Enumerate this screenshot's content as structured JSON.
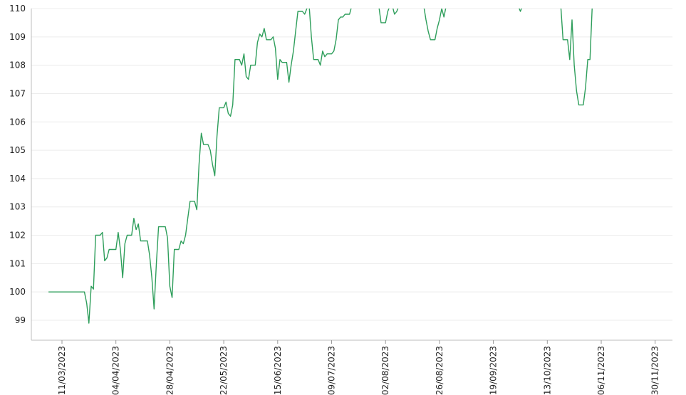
{
  "chart_data": {
    "type": "line",
    "title": "",
    "xlabel": "",
    "ylabel": "",
    "ylim": [
      98.4,
      110
    ],
    "xlim": [
      "2023-03-05",
      "2023-12-04"
    ],
    "grid": {
      "horizontal": true,
      "vertical": false
    },
    "legend": "none",
    "y_ticks": [
      "99",
      "100",
      "101",
      "102",
      "103",
      "104",
      "105",
      "106",
      "107",
      "108",
      "109",
      "110"
    ],
    "x_ticks": [
      {
        "date": "2023-03-11",
        "label": "11/03/2023"
      },
      {
        "date": "2023-04-04",
        "label": "04/04/2023"
      },
      {
        "date": "2023-04-28",
        "label": "28/04/2023"
      },
      {
        "date": "2023-05-22",
        "label": "22/05/2023"
      },
      {
        "date": "2023-06-15",
        "label": "15/06/2023"
      },
      {
        "date": "2023-07-09",
        "label": "09/07/2023"
      },
      {
        "date": "2023-08-02",
        "label": "02/08/2023"
      },
      {
        "date": "2023-08-26",
        "label": "26/08/2023"
      },
      {
        "date": "2023-09-19",
        "label": "19/09/2023"
      },
      {
        "date": "2023-10-13",
        "label": "13/10/2023"
      },
      {
        "date": "2023-11-06",
        "label": "06/11/2023"
      },
      {
        "date": "2023-11-30",
        "label": "30/11/2023"
      }
    ],
    "series": [
      {
        "color": "#2e9e5b",
        "points": [
          [
            "2023-03-05",
            100.0
          ],
          [
            "2023-03-21",
            100.0
          ],
          [
            "2023-03-22",
            99.6
          ],
          [
            "2023-03-23",
            98.9
          ],
          [
            "2023-03-24",
            100.2
          ],
          [
            "2023-03-25",
            100.1
          ],
          [
            "2023-03-26",
            102.0
          ],
          [
            "2023-03-28",
            102.0
          ],
          [
            "2023-03-29",
            102.1
          ],
          [
            "2023-03-30",
            101.1
          ],
          [
            "2023-03-31",
            101.2
          ],
          [
            "2023-04-01",
            101.5
          ],
          [
            "2023-04-04",
            101.5
          ],
          [
            "2023-04-05",
            102.1
          ],
          [
            "2023-04-06",
            101.5
          ],
          [
            "2023-04-07",
            100.5
          ],
          [
            "2023-04-08",
            101.7
          ],
          [
            "2023-04-09",
            102.0
          ],
          [
            "2023-04-11",
            102.0
          ],
          [
            "2023-04-12",
            102.6
          ],
          [
            "2023-04-13",
            102.2
          ],
          [
            "2023-04-14",
            102.4
          ],
          [
            "2023-04-15",
            101.8
          ],
          [
            "2023-04-16",
            101.8
          ],
          [
            "2023-04-18",
            101.8
          ],
          [
            "2023-04-19",
            101.3
          ],
          [
            "2023-04-20",
            100.5
          ],
          [
            "2023-04-21",
            99.4
          ],
          [
            "2023-04-22",
            101.0
          ],
          [
            "2023-04-23",
            102.3
          ],
          [
            "2023-04-26",
            102.3
          ],
          [
            "2023-04-27",
            101.9
          ],
          [
            "2023-04-28",
            100.2
          ],
          [
            "2023-04-29",
            99.8
          ],
          [
            "2023-04-30",
            101.5
          ],
          [
            "2023-05-02",
            101.5
          ],
          [
            "2023-05-03",
            101.8
          ],
          [
            "2023-05-04",
            101.7
          ],
          [
            "2023-05-05",
            102.0
          ],
          [
            "2023-05-06",
            102.6
          ],
          [
            "2023-05-07",
            103.2
          ],
          [
            "2023-05-09",
            103.2
          ],
          [
            "2023-05-10",
            102.9
          ],
          [
            "2023-05-11",
            104.5
          ],
          [
            "2023-05-12",
            105.6
          ],
          [
            "2023-05-13",
            105.2
          ],
          [
            "2023-05-15",
            105.2
          ],
          [
            "2023-05-16",
            105.0
          ],
          [
            "2023-05-17",
            104.5
          ],
          [
            "2023-05-18",
            104.1
          ],
          [
            "2023-05-19",
            105.5
          ],
          [
            "2023-05-20",
            106.5
          ],
          [
            "2023-05-22",
            106.5
          ],
          [
            "2023-05-23",
            106.7
          ],
          [
            "2023-05-24",
            106.3
          ],
          [
            "2023-05-25",
            106.2
          ],
          [
            "2023-05-26",
            106.6
          ],
          [
            "2023-05-27",
            108.2
          ],
          [
            "2023-05-29",
            108.2
          ],
          [
            "2023-05-30",
            108.0
          ],
          [
            "2023-05-31",
            108.4
          ],
          [
            "2023-06-01",
            107.6
          ],
          [
            "2023-06-02",
            107.5
          ],
          [
            "2023-06-03",
            108.0
          ],
          [
            "2023-06-05",
            108.0
          ],
          [
            "2023-06-06",
            108.8
          ],
          [
            "2023-06-07",
            109.1
          ],
          [
            "2023-06-08",
            109.0
          ],
          [
            "2023-06-09",
            109.3
          ],
          [
            "2023-06-10",
            108.9
          ],
          [
            "2023-06-12",
            108.9
          ],
          [
            "2023-06-13",
            109.0
          ],
          [
            "2023-06-14",
            108.6
          ],
          [
            "2023-06-15",
            107.5
          ],
          [
            "2023-06-16",
            108.2
          ],
          [
            "2023-06-17",
            108.1
          ],
          [
            "2023-06-19",
            108.1
          ],
          [
            "2023-06-20",
            107.4
          ],
          [
            "2023-06-21",
            108.0
          ],
          [
            "2023-06-22",
            108.5
          ],
          [
            "2023-06-23",
            109.2
          ],
          [
            "2023-06-24",
            109.9
          ],
          [
            "2023-06-26",
            109.9
          ],
          [
            "2023-06-27",
            109.8
          ],
          [
            "2023-06-28",
            110.0
          ],
          [
            "2023-06-29",
            110.1
          ],
          [
            "2023-06-30",
            109.0
          ],
          [
            "2023-07-01",
            108.2
          ],
          [
            "2023-07-03",
            108.2
          ],
          [
            "2023-07-04",
            108.0
          ],
          [
            "2023-07-05",
            108.5
          ],
          [
            "2023-07-06",
            108.3
          ],
          [
            "2023-07-07",
            108.4
          ],
          [
            "2023-07-09",
            108.4
          ],
          [
            "2023-07-10",
            108.5
          ],
          [
            "2023-07-11",
            108.9
          ],
          [
            "2023-07-12",
            109.6
          ],
          [
            "2023-07-13",
            109.7
          ],
          [
            "2023-07-14",
            109.7
          ],
          [
            "2023-07-15",
            109.8
          ],
          [
            "2023-07-17",
            109.8
          ],
          [
            "2023-07-18",
            110.1
          ]
        ]
      },
      {
        "color": "#2e9e5b",
        "points": [
          [
            "2023-07-30",
            110.1
          ],
          [
            "2023-07-31",
            109.5
          ],
          [
            "2023-08-02",
            109.5
          ],
          [
            "2023-08-03",
            109.9
          ],
          [
            "2023-08-04",
            110.1
          ]
        ]
      },
      {
        "color": "#2e9e5b",
        "points": [
          [
            "2023-08-05",
            110.1
          ],
          [
            "2023-08-06",
            109.8
          ],
          [
            "2023-08-07",
            109.9
          ],
          [
            "2023-08-08",
            110.1
          ]
        ]
      },
      {
        "color": "#2e9e5b",
        "points": [
          [
            "2023-08-19",
            110.1
          ],
          [
            "2023-08-20",
            109.6
          ],
          [
            "2023-08-21",
            109.2
          ],
          [
            "2023-08-22",
            108.9
          ],
          [
            "2023-08-24",
            108.9
          ],
          [
            "2023-08-25",
            109.3
          ],
          [
            "2023-08-26",
            109.6
          ],
          [
            "2023-08-27",
            110.0
          ],
          [
            "2023-08-28",
            109.7
          ],
          [
            "2023-08-29",
            110.1
          ]
        ]
      },
      {
        "color": "#2e9e5b",
        "points": [
          [
            "2023-09-30",
            110.1
          ],
          [
            "2023-10-01",
            109.9
          ],
          [
            "2023-10-02",
            110.1
          ]
        ]
      },
      {
        "color": "#2e9e5b",
        "points": [
          [
            "2023-10-19",
            110.1
          ],
          [
            "2023-10-20",
            108.9
          ],
          [
            "2023-10-22",
            108.9
          ],
          [
            "2023-10-23",
            108.2
          ],
          [
            "2023-10-24",
            109.6
          ],
          [
            "2023-10-25",
            108.0
          ],
          [
            "2023-10-26",
            107.1
          ],
          [
            "2023-10-27",
            106.6
          ],
          [
            "2023-10-29",
            106.6
          ],
          [
            "2023-10-30",
            107.2
          ],
          [
            "2023-10-31",
            108.2
          ],
          [
            "2023-11-01",
            108.2
          ],
          [
            "2023-11-02",
            110.1
          ]
        ]
      }
    ]
  }
}
